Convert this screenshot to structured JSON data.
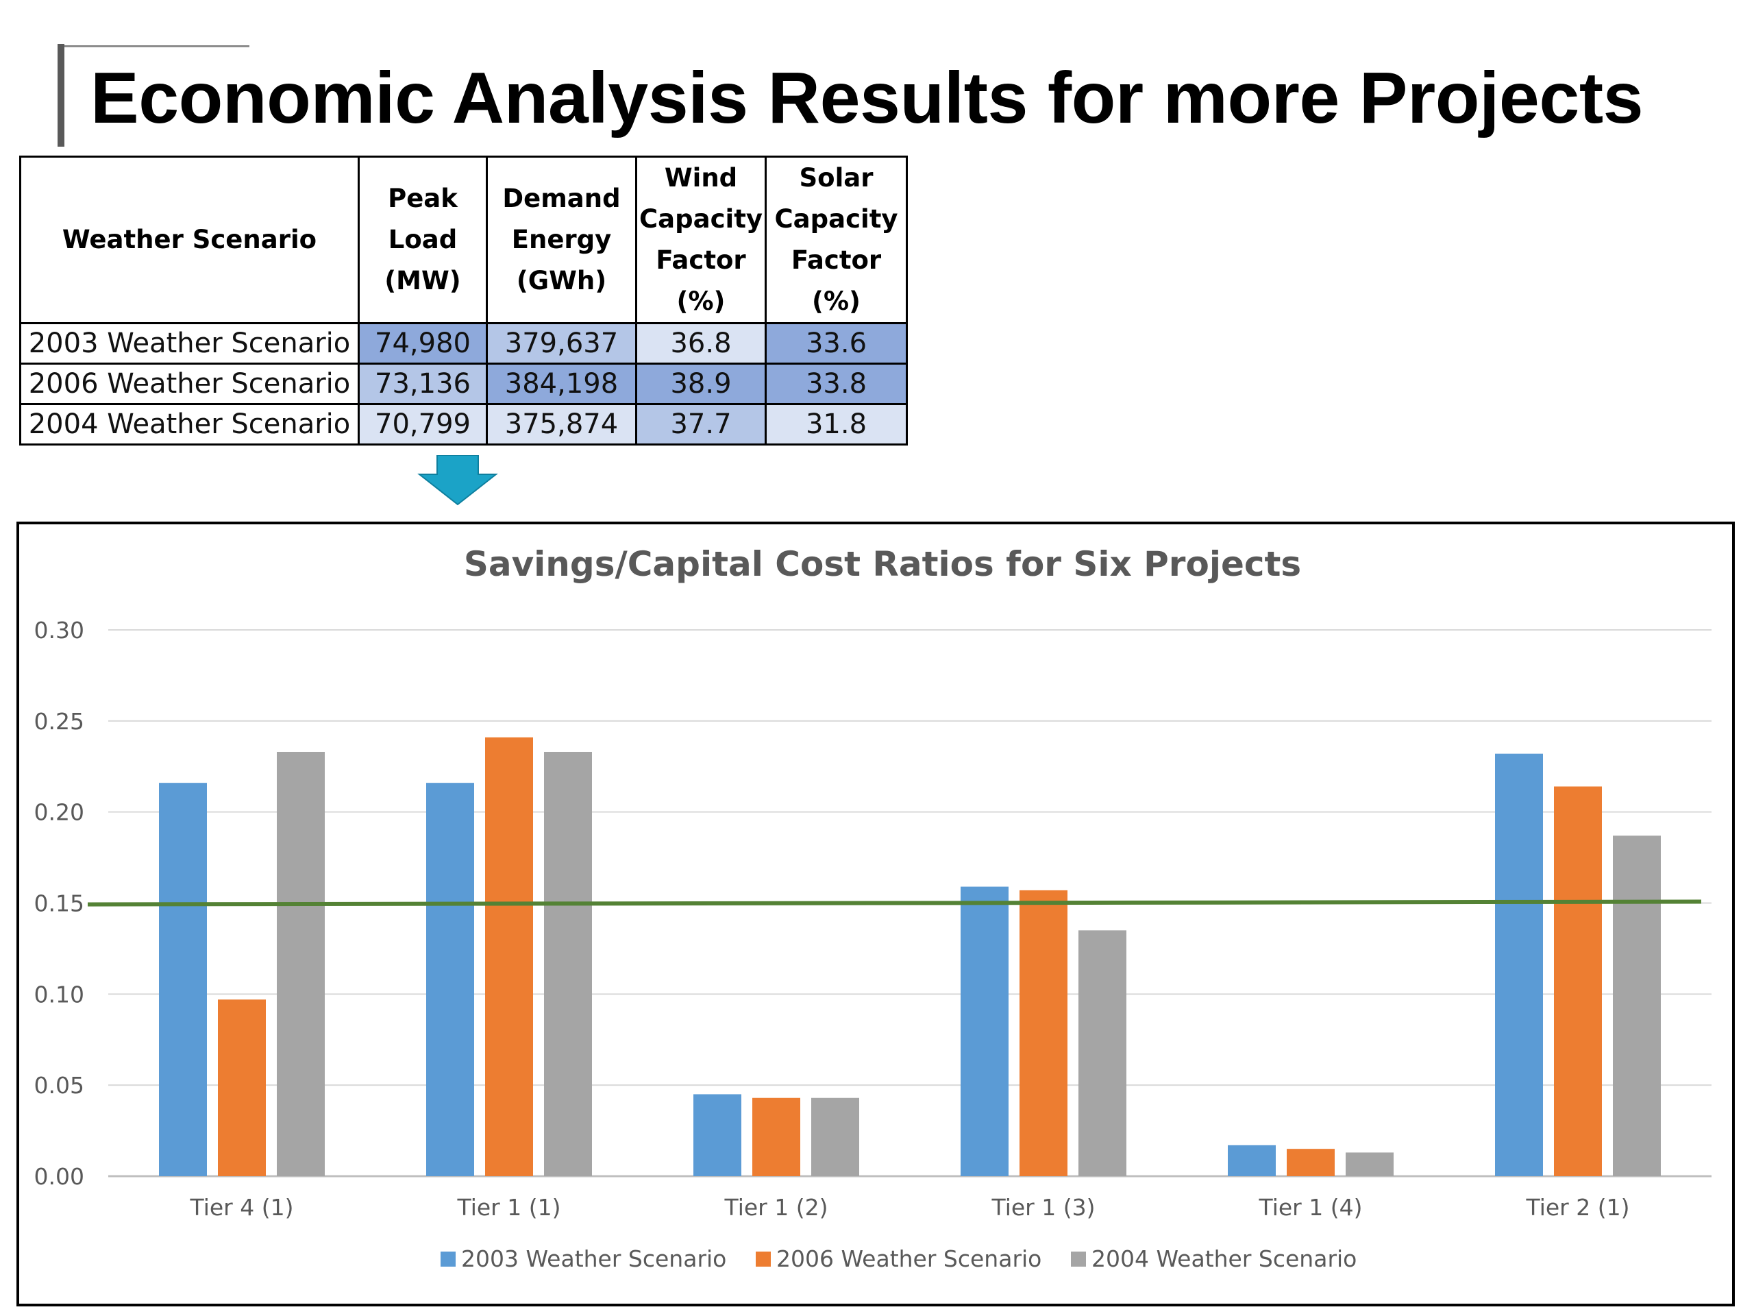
{
  "slide": {
    "title": "Economic Analysis Results for more Projects"
  },
  "table": {
    "headers": [
      "Weather Scenario",
      "Peak Load (MW)",
      "Demand Energy (GWh)",
      "Wind Capacity Factor (%)",
      "Solar Capacity Factor (%)"
    ],
    "header_lines": [
      [
        "Weather Scenario"
      ],
      [
        "Peak",
        "Load",
        "(MW)"
      ],
      [
        "Demand",
        "Energy",
        "(GWh)"
      ],
      [
        "Wind",
        "Capacity",
        "Factor",
        "(%)"
      ],
      [
        "Solar",
        "Capacity",
        "Factor",
        "(%)"
      ]
    ],
    "rows": [
      {
        "name": "2003 Weather Scenario",
        "values": [
          "74,980",
          "379,637",
          "36.8",
          "33.6"
        ]
      },
      {
        "name": "2006 Weather Scenario",
        "values": [
          "73,136",
          "384,198",
          "38.9",
          "33.8"
        ]
      },
      {
        "name": "2004 Weather Scenario",
        "values": [
          "70,799",
          "375,874",
          "37.7",
          "31.8"
        ]
      }
    ],
    "heat_colors": [
      [
        "#8ea9db",
        "#b4c6e7",
        "#dae3f3",
        "#8ea9db"
      ],
      [
        "#b4c6e7",
        "#8ea9db",
        "#8ea9db",
        "#8ea9db"
      ],
      [
        "#dae3f3",
        "#dae3f3",
        "#b4c6e7",
        "#dae3f3"
      ]
    ]
  },
  "arrow_color": "#1ba3c7",
  "chart_data": {
    "type": "bar",
    "title": "Savings/Capital Cost Ratios for Six Projects",
    "categories": [
      "Tier 4 (1)",
      "Tier 1 (1)",
      "Tier 1 (2)",
      "Tier 1 (3)",
      "Tier 1 (4)",
      "Tier 2 (1)"
    ],
    "series": [
      {
        "name": "2003 Weather Scenario",
        "color": "#5b9bd5",
        "values": [
          0.216,
          0.216,
          0.045,
          0.159,
          0.017,
          0.232
        ]
      },
      {
        "name": "2006 Weather Scenario",
        "color": "#ed7d31",
        "values": [
          0.097,
          0.241,
          0.043,
          0.157,
          0.015,
          0.214
        ]
      },
      {
        "name": "2004 Weather Scenario",
        "color": "#a5a5a5",
        "values": [
          0.233,
          0.233,
          0.043,
          0.135,
          0.013,
          0.187
        ]
      }
    ],
    "yticks": [
      "0.00",
      "0.05",
      "0.10",
      "0.15",
      "0.20",
      "0.25",
      "0.30"
    ],
    "ylim": [
      0,
      0.3
    ],
    "xlabel": "",
    "ylabel": "",
    "grid": true,
    "legend_position": "bottom",
    "threshold_line": {
      "value": 0.15,
      "color": "#548235"
    }
  }
}
